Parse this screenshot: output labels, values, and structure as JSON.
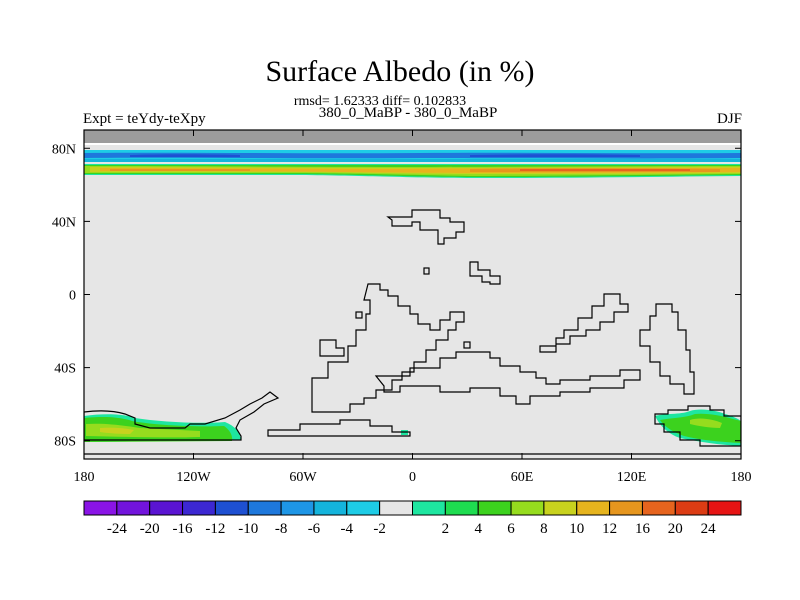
{
  "title": "Surface Albedo (in %)",
  "stats_line": "rmsd= 1.62333 diff= 0.102833",
  "subtitle": "380_0_MaBP - 380_0_MaBP",
  "experiment_label": "Expt = teYdy-teXpy",
  "season_label": "DJF",
  "map": {
    "projection": "cylindrical-equidistant",
    "background_color": "#e6e6e6",
    "no_data_color": "#9c9c9c",
    "lon_range": [
      -180,
      180
    ],
    "lat_range": [
      -90,
      90
    ],
    "lon_ticks": [
      {
        "value": -180,
        "label": "180"
      },
      {
        "value": -120,
        "label": "120W"
      },
      {
        "value": -60,
        "label": "60W"
      },
      {
        "value": 0,
        "label": "0"
      },
      {
        "value": 60,
        "label": "60E"
      },
      {
        "value": 120,
        "label": "120E"
      },
      {
        "value": 180,
        "label": "180"
      }
    ],
    "lat_ticks": [
      {
        "value": 80,
        "label": "80N"
      },
      {
        "value": 40,
        "label": "40N"
      },
      {
        "value": 0,
        "label": "0"
      },
      {
        "value": -40,
        "label": "40S"
      },
      {
        "value": -80,
        "label": "80S"
      }
    ]
  },
  "colorbar": {
    "colors": [
      "#8a14e6",
      "#7214dc",
      "#5a14d2",
      "#3c28d2",
      "#1e50d2",
      "#1e78dc",
      "#1e96e6",
      "#14b4dc",
      "#1ecce6",
      "#e6e6e6",
      "#1ee6a0",
      "#1edc50",
      "#3cd21e",
      "#96dc1e",
      "#c8d21e",
      "#e6b41e",
      "#e6961e",
      "#e6641e",
      "#dc3c14",
      "#e61414"
    ],
    "labels": [
      "-24",
      "-20",
      "-16",
      "-12",
      "-10",
      "-8",
      "-6",
      "-4",
      "-2",
      "2",
      "4",
      "6",
      "8",
      "10",
      "12",
      "16",
      "20",
      "24"
    ]
  }
}
